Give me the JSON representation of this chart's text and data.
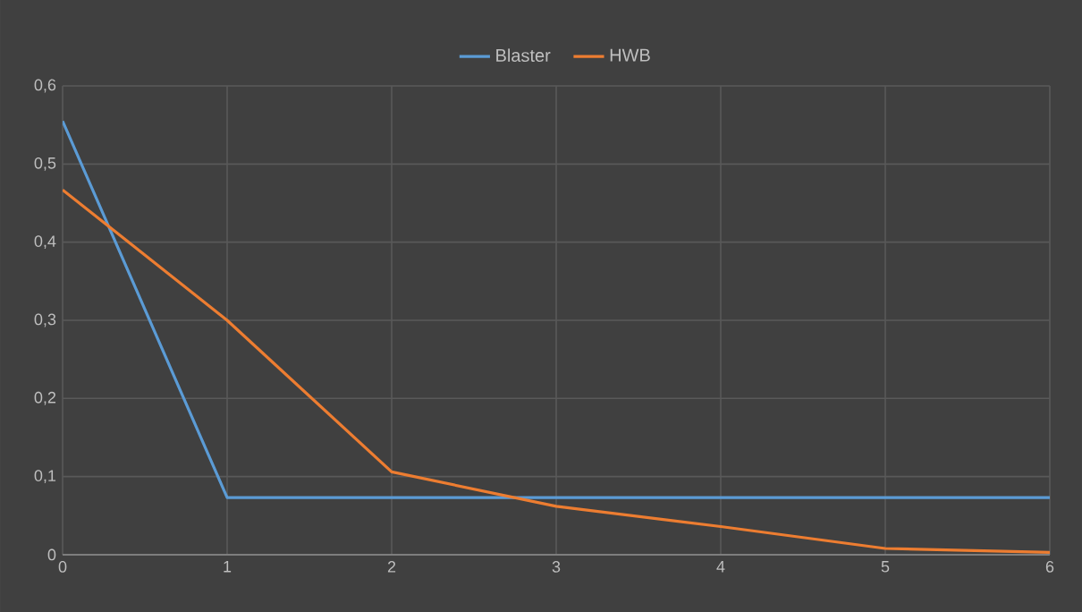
{
  "chart_data": {
    "type": "line",
    "x": [
      0,
      1,
      2,
      3,
      4,
      5,
      6
    ],
    "series": [
      {
        "name": "Blaster",
        "color": "#5b9bd5",
        "values": [
          0.555,
          0.073,
          0.073,
          0.073,
          0.073,
          0.073,
          0.073
        ]
      },
      {
        "name": "HWB",
        "color": "#ed7d31",
        "values": [
          0.467,
          0.3,
          0.106,
          0.062,
          0.036,
          0.008,
          0.003
        ]
      }
    ],
    "xlim": [
      0,
      6
    ],
    "xticks": [
      0,
      1,
      2,
      3,
      4,
      5,
      6
    ],
    "ylim": [
      0,
      0.6
    ],
    "yticks": [
      0,
      {
        "value": 0.1,
        "label": "0,1"
      },
      {
        "value": 0.2,
        "label": "0,2"
      },
      {
        "value": 0.3,
        "label": "0,3"
      },
      {
        "value": 0.4,
        "label": "0,4"
      },
      {
        "value": 0.5,
        "label": "0,5"
      },
      {
        "value": 0.6,
        "label": "0,6"
      }
    ],
    "grid": true,
    "legend": "top",
    "marker": "none",
    "line_style": "solid"
  }
}
